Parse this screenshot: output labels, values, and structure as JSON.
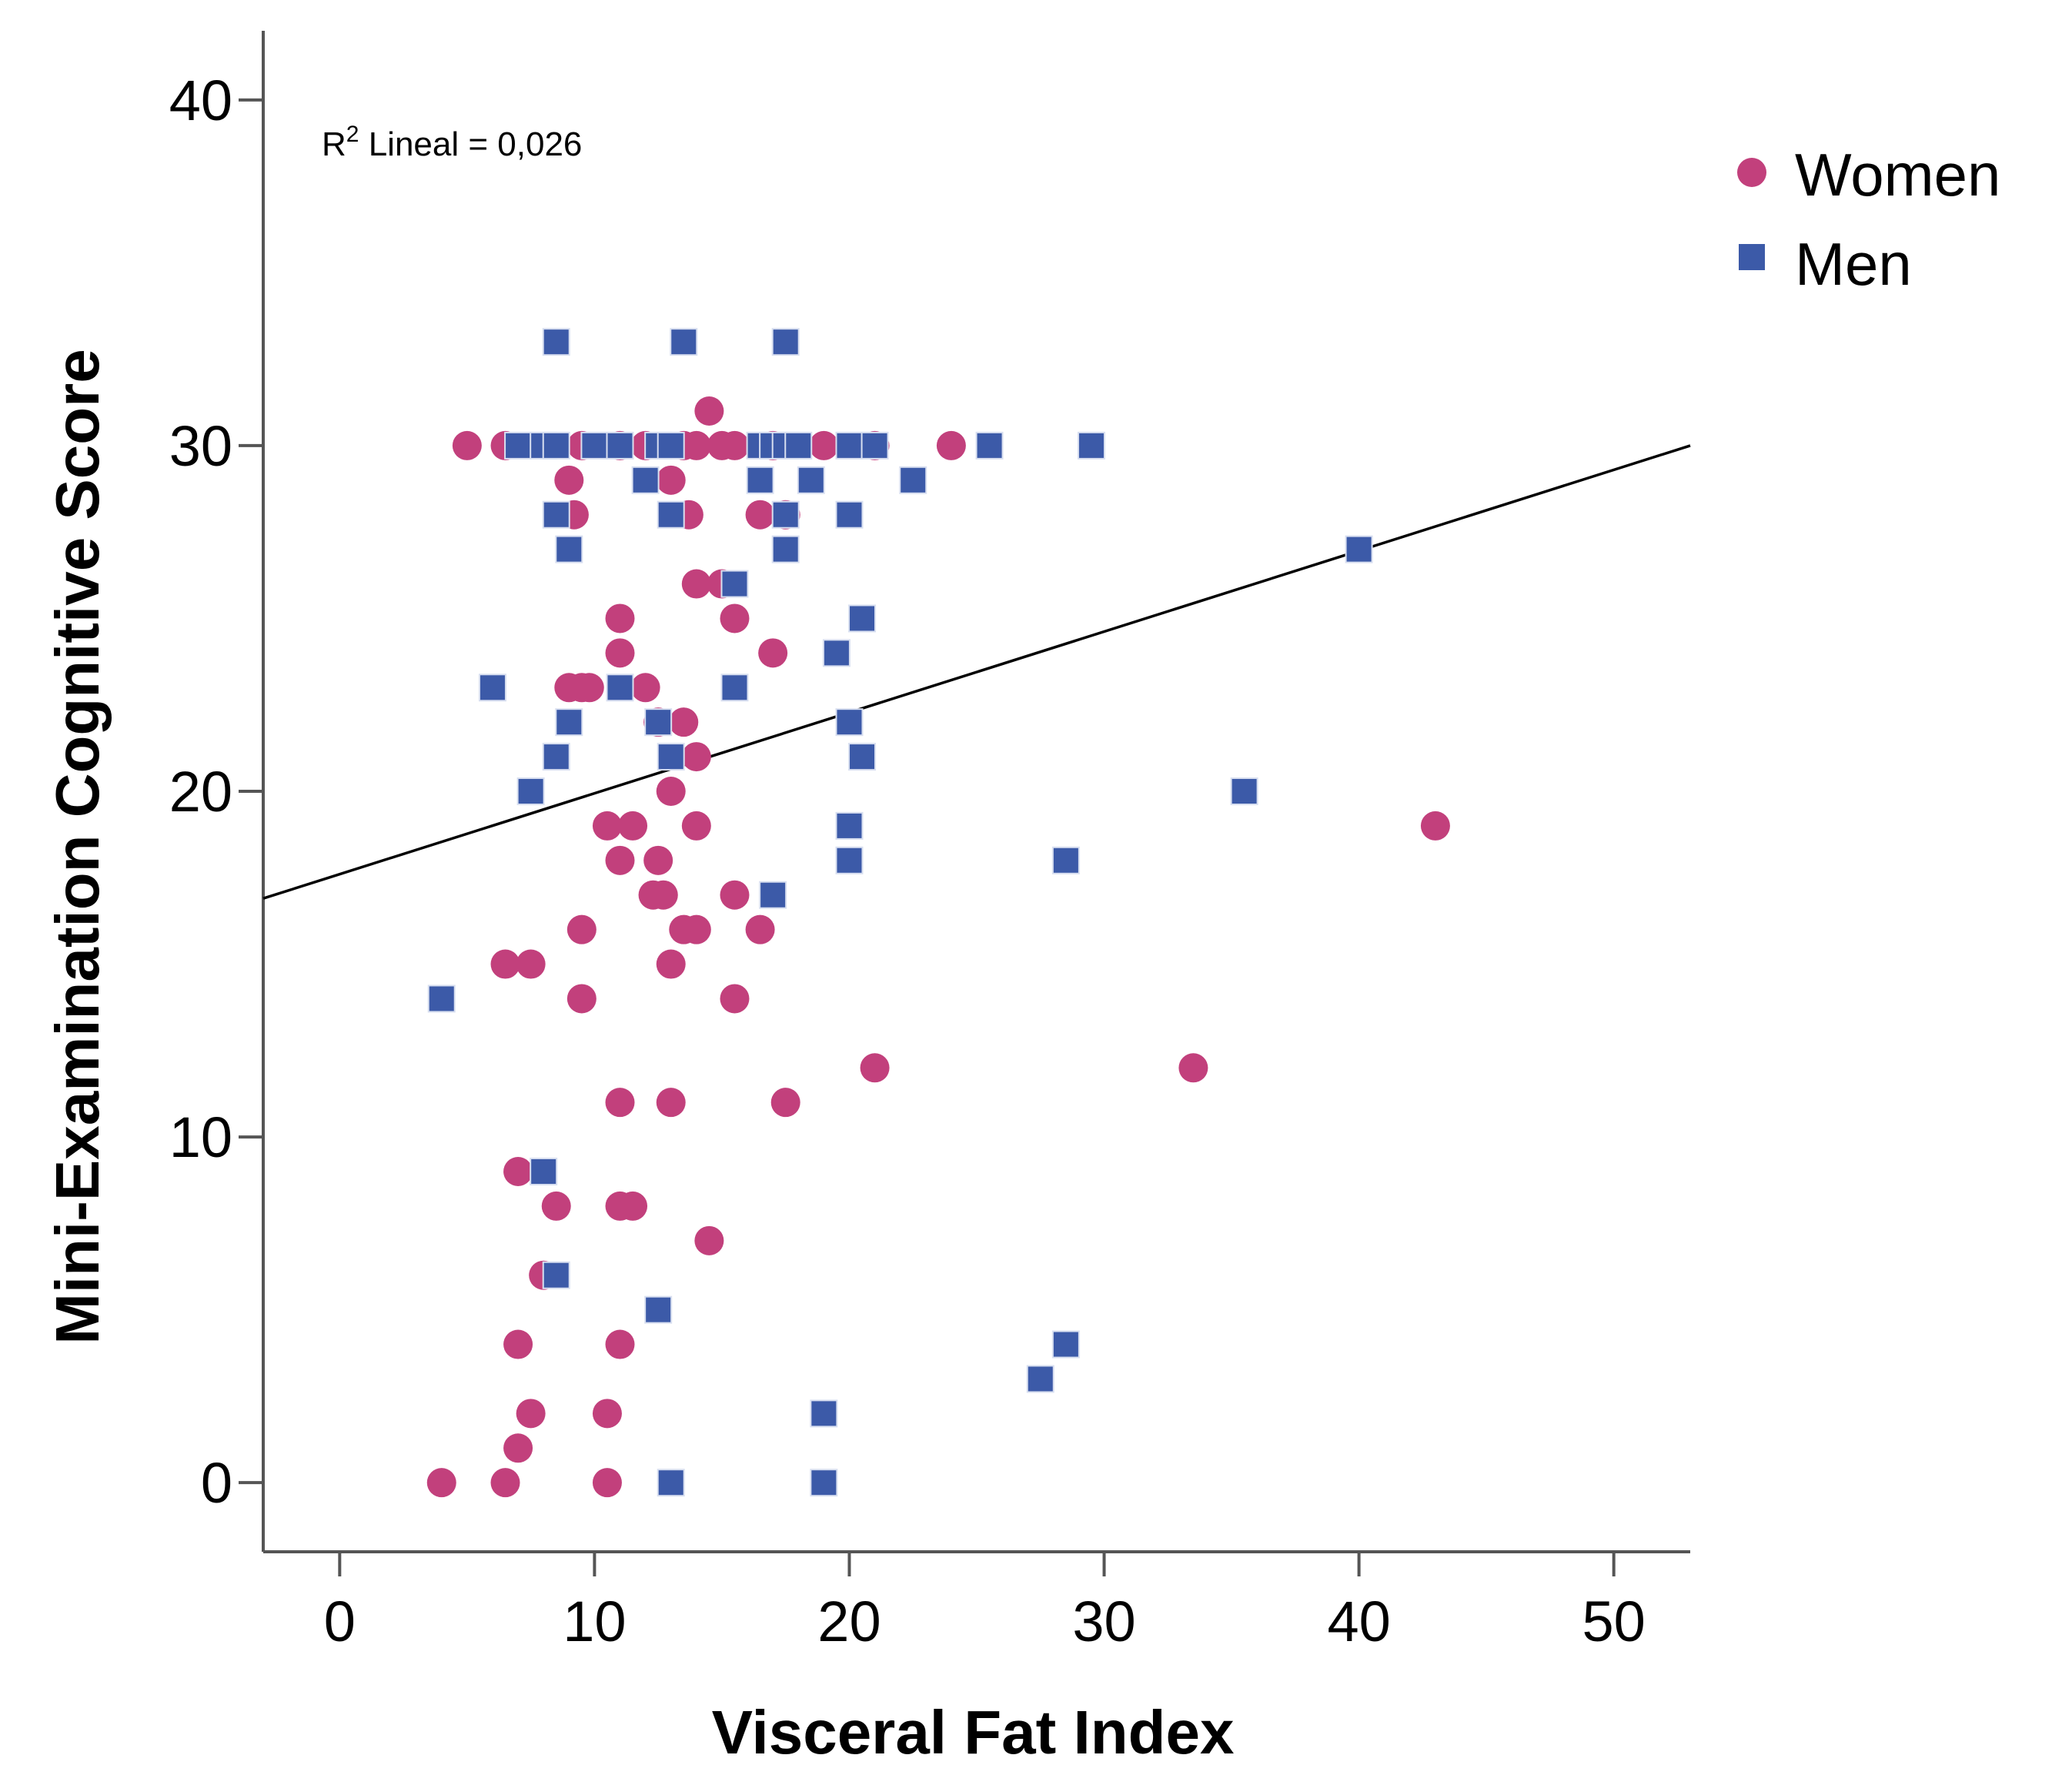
{
  "chart_data": {
    "type": "scatter",
    "xlabel": "Visceral Fat Index",
    "ylabel": "Mini-Examination Cognitive Score",
    "xlim": [
      -3,
      53
    ],
    "ylim": [
      -2,
      42
    ],
    "xticks": [
      0,
      10,
      20,
      30,
      40,
      50
    ],
    "yticks": [
      0,
      10,
      20,
      30,
      40
    ],
    "grid": false,
    "legend_position": "top-right",
    "annotation": {
      "r2_prefix": "R",
      "r2_sup": "2",
      "r2_text": " Lineal = 0,026"
    },
    "fit_line": {
      "x": [
        -3,
        53
      ],
      "y": [
        16.9,
        30.0
      ]
    },
    "series": [
      {
        "name": "Women",
        "marker": "circle",
        "color": "#c2407c",
        "points": [
          [
            5,
            30
          ],
          [
            6.5,
            30
          ],
          [
            9.5,
            30
          ],
          [
            11,
            30
          ],
          [
            12,
            30
          ],
          [
            13.5,
            30
          ],
          [
            14,
            30
          ],
          [
            15,
            30
          ],
          [
            15.5,
            30
          ],
          [
            17,
            30
          ],
          [
            19,
            30
          ],
          [
            21,
            30
          ],
          [
            24,
            30
          ],
          [
            14.5,
            31
          ],
          [
            9,
            29
          ],
          [
            13,
            29
          ],
          [
            9.2,
            28
          ],
          [
            13.7,
            28
          ],
          [
            16.5,
            28
          ],
          [
            17.5,
            28
          ],
          [
            14,
            26
          ],
          [
            15,
            26
          ],
          [
            11,
            25
          ],
          [
            15.5,
            25
          ],
          [
            11,
            24
          ],
          [
            17,
            24
          ],
          [
            9,
            23
          ],
          [
            9.5,
            23
          ],
          [
            9.8,
            23
          ],
          [
            12,
            23
          ],
          [
            13.5,
            22
          ],
          [
            12.5,
            22
          ],
          [
            14,
            21
          ],
          [
            13,
            20
          ],
          [
            10.5,
            19
          ],
          [
            11.5,
            19
          ],
          [
            14,
            19
          ],
          [
            11,
            18
          ],
          [
            12.5,
            18
          ],
          [
            12.3,
            17
          ],
          [
            12.7,
            17
          ],
          [
            15.5,
            17
          ],
          [
            9.5,
            16
          ],
          [
            13.5,
            16
          ],
          [
            14,
            16
          ],
          [
            16.5,
            16
          ],
          [
            6.5,
            15
          ],
          [
            7.5,
            15
          ],
          [
            13,
            15
          ],
          [
            9.5,
            14
          ],
          [
            15.5,
            14
          ],
          [
            21,
            12
          ],
          [
            33.5,
            12
          ],
          [
            11,
            11
          ],
          [
            13,
            11
          ],
          [
            17.5,
            11
          ],
          [
            43,
            19
          ],
          [
            7,
            9
          ],
          [
            8.5,
            8
          ],
          [
            11,
            8
          ],
          [
            11.5,
            8
          ],
          [
            14.5,
            7
          ],
          [
            8,
            6
          ],
          [
            7,
            4
          ],
          [
            11,
            4
          ],
          [
            7.5,
            2
          ],
          [
            10.5,
            2
          ],
          [
            7,
            1
          ],
          [
            4,
            0
          ],
          [
            6.5,
            0
          ],
          [
            10.5,
            0
          ]
        ]
      },
      {
        "name": "Men",
        "marker": "square",
        "color": "#3c5aa8",
        "points": [
          [
            8.5,
            33
          ],
          [
            13.5,
            33
          ],
          [
            17.5,
            33
          ],
          [
            7,
            30
          ],
          [
            8,
            30
          ],
          [
            8.5,
            30
          ],
          [
            10,
            30
          ],
          [
            11,
            30
          ],
          [
            12.5,
            30
          ],
          [
            13,
            30
          ],
          [
            16.5,
            30
          ],
          [
            17,
            30
          ],
          [
            17.5,
            30
          ],
          [
            18,
            30
          ],
          [
            20,
            30
          ],
          [
            21,
            30
          ],
          [
            25.5,
            30
          ],
          [
            29.5,
            30
          ],
          [
            12,
            29
          ],
          [
            16.5,
            29
          ],
          [
            18.5,
            29
          ],
          [
            22.5,
            29
          ],
          [
            8.5,
            28
          ],
          [
            13,
            28
          ],
          [
            17.5,
            28
          ],
          [
            20,
            28
          ],
          [
            9,
            27
          ],
          [
            17.5,
            27
          ],
          [
            40,
            27
          ],
          [
            15.5,
            26
          ],
          [
            20.5,
            25
          ],
          [
            19.5,
            24
          ],
          [
            6,
            23
          ],
          [
            11,
            23
          ],
          [
            15.5,
            23
          ],
          [
            9,
            22
          ],
          [
            12.5,
            22
          ],
          [
            20,
            22
          ],
          [
            8.5,
            21
          ],
          [
            13,
            21
          ],
          [
            20.5,
            21
          ],
          [
            7.5,
            20
          ],
          [
            35.5,
            20
          ],
          [
            20,
            19
          ],
          [
            20,
            18
          ],
          [
            28.5,
            18
          ],
          [
            17,
            17
          ],
          [
            4,
            14
          ],
          [
            8,
            9
          ],
          [
            8.5,
            6
          ],
          [
            12.5,
            5
          ],
          [
            28.5,
            4
          ],
          [
            27.5,
            3
          ],
          [
            19,
            2
          ],
          [
            13,
            0
          ],
          [
            19,
            0
          ]
        ]
      }
    ]
  }
}
